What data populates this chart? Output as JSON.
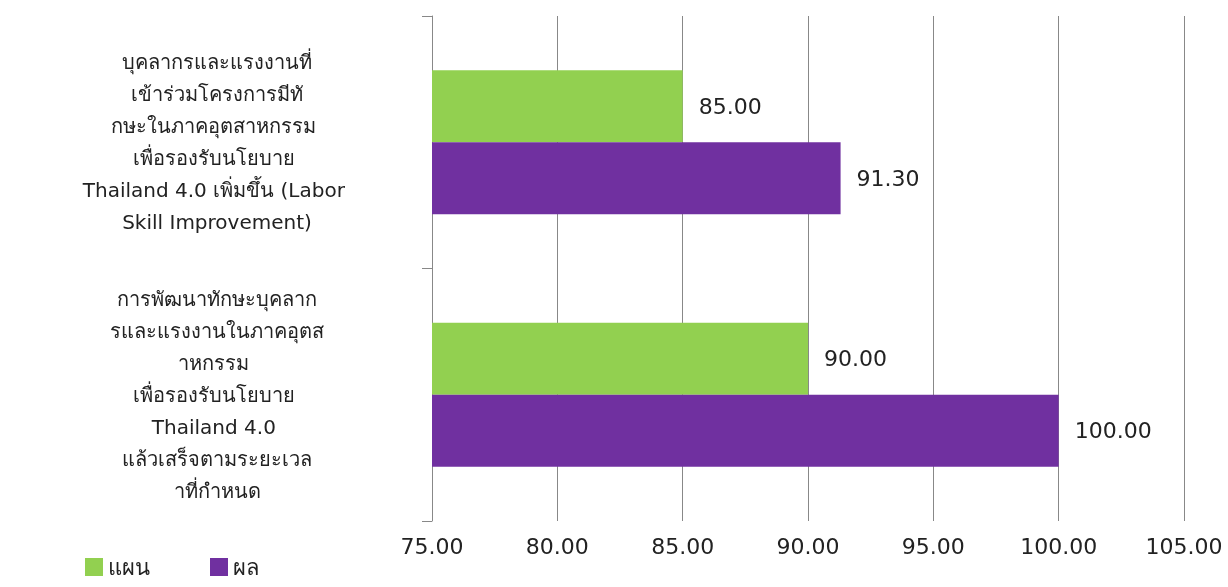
{
  "chart_data": {
    "type": "bar",
    "orientation": "horizontal",
    "categories": [
      "บุคลากรและแรงงานที่เข้าร่วมโครงการมีทักษะในภาคอุตสาหกรรม เพื่อรองรับนโยบาย Thailand 4.0 เพิ่มขึ้น (Labor Skill Improvement)",
      "การพัฒนาทักษะบุคลากรและแรงงานในภาคอุตสาหกรรม เพื่อรองรับนโยบาย Thailand 4.0 แล้วเสร็จตามระยะเวลาที่กำหนด"
    ],
    "series": [
      {
        "name": "แผน",
        "color": "#92d050",
        "values": [
          85,
          90
        ],
        "value_labels": [
          "85.00",
          "90.00"
        ]
      },
      {
        "name": "ผล",
        "color": "#7030a0",
        "values": [
          91.3,
          100
        ],
        "value_labels": [
          "91.30",
          "100.00"
        ]
      }
    ],
    "xlim": [
      75,
      105
    ],
    "xticks": [
      {
        "value": 75,
        "label": "75.00"
      },
      {
        "value": 80,
        "label": "80.00"
      },
      {
        "value": 85,
        "label": "85.00"
      },
      {
        "value": 90,
        "label": "90.00"
      },
      {
        "value": 95,
        "label": "95.00"
      },
      {
        "value": 100,
        "label": "100.00"
      },
      {
        "value": 105,
        "label": "105.00"
      }
    ],
    "grid": "x",
    "legend": "bottom left"
  }
}
